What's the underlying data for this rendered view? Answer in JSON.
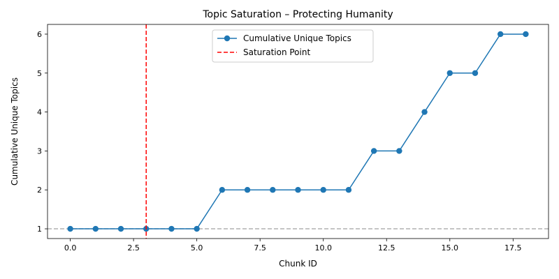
{
  "chart_data": {
    "type": "line",
    "title": "Topic Saturation – Protecting Humanity",
    "xlabel": "Chunk ID",
    "ylabel": "Cumulative Unique Topics",
    "xlim": [
      -0.9,
      18.9
    ],
    "ylim": [
      0.75,
      6.25
    ],
    "xticks": [
      0.0,
      2.5,
      5.0,
      7.5,
      10.0,
      12.5,
      15.0,
      17.5
    ],
    "xtick_labels": [
      "0.0",
      "2.5",
      "5.0",
      "7.5",
      "10.0",
      "12.5",
      "15.0",
      "17.5"
    ],
    "yticks": [
      1,
      2,
      3,
      4,
      5,
      6
    ],
    "ytick_labels": [
      "1",
      "2",
      "3",
      "4",
      "5",
      "6"
    ],
    "grid": false,
    "legend_position": "top-center",
    "series": [
      {
        "name": "Cumulative Unique Topics",
        "color": "#1f77b4",
        "marker": "circle",
        "x": [
          0,
          1,
          2,
          3,
          4,
          5,
          6,
          7,
          8,
          9,
          10,
          11,
          12,
          13,
          14,
          15,
          16,
          17,
          18
        ],
        "y": [
          1,
          1,
          1,
          1,
          1,
          1,
          2,
          2,
          2,
          2,
          2,
          2,
          3,
          3,
          4,
          5,
          5,
          6,
          6
        ]
      }
    ],
    "vlines": [
      {
        "name": "Saturation Point",
        "x": 3,
        "color": "#ff0000",
        "style": "dashed"
      }
    ],
    "hlines": [
      {
        "y": 1,
        "color": "#b0b0b0",
        "style": "dashed"
      }
    ]
  }
}
